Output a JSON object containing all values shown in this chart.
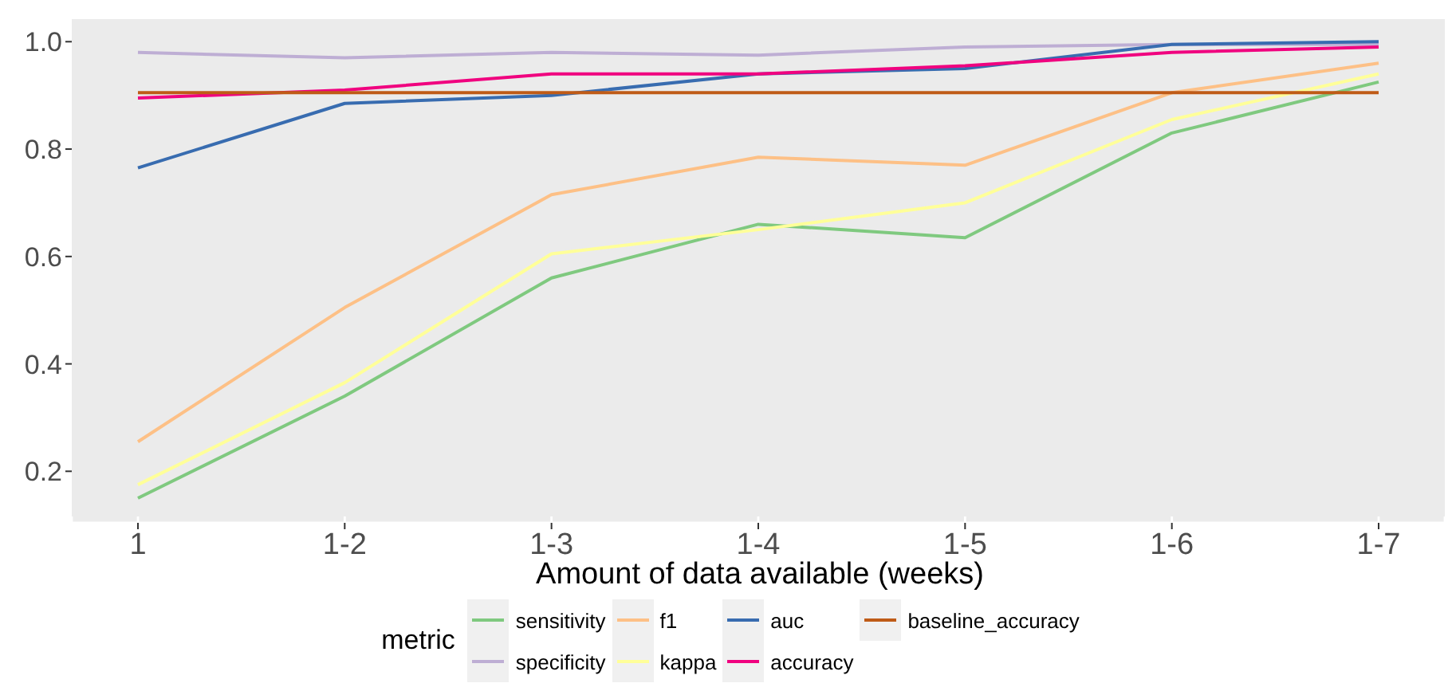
{
  "chart_data": {
    "type": "line",
    "xlabel": "Amount of data available (weeks)",
    "legend_title": "metric",
    "categories": [
      "1",
      "1-2",
      "1-3",
      "1-4",
      "1-5",
      "1-6",
      "1-7"
    ],
    "series": [
      {
        "name": "sensitivity",
        "color": "#7fc97f",
        "values": [
          0.15,
          0.34,
          0.56,
          0.66,
          0.635,
          0.83,
          0.925
        ]
      },
      {
        "name": "specificity",
        "color": "#beaed4",
        "values": [
          0.98,
          0.97,
          0.98,
          0.975,
          0.99,
          0.995,
          0.995
        ]
      },
      {
        "name": "f1",
        "color": "#fdc086",
        "values": [
          0.255,
          0.505,
          0.715,
          0.785,
          0.77,
          0.905,
          0.96
        ]
      },
      {
        "name": "kappa",
        "color": "#ffff99",
        "values": [
          0.175,
          0.365,
          0.605,
          0.65,
          0.7,
          0.855,
          0.94
        ]
      },
      {
        "name": "auc",
        "color": "#386cb0",
        "values": [
          0.765,
          0.885,
          0.9,
          0.94,
          0.95,
          0.995,
          1.0
        ]
      },
      {
        "name": "accuracy",
        "color": "#f0027f",
        "values": [
          0.895,
          0.91,
          0.94,
          0.94,
          0.955,
          0.98,
          0.99
        ]
      },
      {
        "name": "baseline_accuracy",
        "color": "#bf5b17",
        "values": [
          0.905,
          0.905,
          0.905,
          0.905,
          0.905,
          0.905,
          0.905
        ]
      }
    ],
    "ylim": [
      0.104,
      1.042
    ],
    "yticks": [
      0.2,
      0.4,
      0.6,
      0.8,
      {
        "value": 1,
        "label": "1.0"
      }
    ],
    "grid": true,
    "legend": "bottom",
    "marker": "none",
    "line_style": "solid"
  }
}
